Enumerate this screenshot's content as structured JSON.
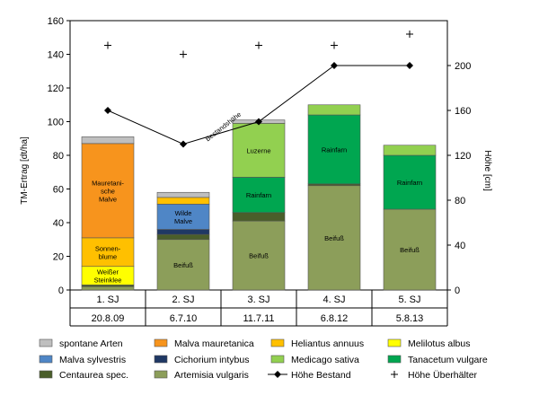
{
  "chart_data": {
    "type": "bar",
    "stacked": true,
    "ylabel": "TM-Ertrag [dt/ha]",
    "y2label": "Höhe [cm]",
    "ylim": [
      0,
      160
    ],
    "yticks": [
      0,
      20,
      40,
      60,
      80,
      100,
      120,
      140,
      160
    ],
    "y2lim": [
      0,
      240
    ],
    "y2ticks": [
      0,
      40,
      80,
      120,
      160,
      200
    ],
    "categories": [
      "1. SJ",
      "2. SJ",
      "3. SJ",
      "4. SJ",
      "5. SJ"
    ],
    "dates": [
      "20.8.09",
      "6.7.10",
      "11.7.11",
      "6.8.12",
      "5.8.13"
    ],
    "series": [
      {
        "name": "Artemisia vulgaris",
        "color": "#8c9e5a",
        "values": [
          2,
          30,
          41,
          62,
          48
        ],
        "labels": [
          "",
          "Beifuß",
          "Beifuß",
          "Beifuß",
          "Beifuß"
        ]
      },
      {
        "name": "Centaurea spec.",
        "color": "#4a5e2a",
        "values": [
          1,
          3,
          5,
          1,
          0
        ],
        "labels": [
          "",
          "",
          "",
          "",
          ""
        ]
      },
      {
        "name": "Tanacetum vulgare",
        "color": "#00a650",
        "values": [
          0,
          0,
          21,
          41,
          32
        ],
        "labels": [
          "",
          "",
          "Rainfarn",
          "Rainfarn",
          "Rainfarn"
        ]
      },
      {
        "name": "Medicago sativa",
        "color": "#92d050",
        "values": [
          0,
          0,
          32,
          6,
          6
        ],
        "labels": [
          "",
          "",
          "Luzerne",
          "",
          ""
        ]
      },
      {
        "name": "Cichorium intybus",
        "color": "#1f3864",
        "values": [
          0,
          3,
          0,
          0,
          0
        ],
        "labels": [
          "",
          "",
          "",
          "",
          ""
        ]
      },
      {
        "name": "Malva sylvestris",
        "color": "#4f86c6",
        "values": [
          0,
          15,
          0,
          0,
          0
        ],
        "labels": [
          "",
          "Wilde Malve",
          "",
          "",
          ""
        ]
      },
      {
        "name": "Melilotus albus",
        "color": "#ffff00",
        "values": [
          11,
          0,
          0,
          0,
          0
        ],
        "labels": [
          "Weißer Steinklee",
          "",
          "",
          "",
          ""
        ]
      },
      {
        "name": "Heliantus annuus",
        "color": "#ffc000",
        "values": [
          17,
          4,
          0,
          0,
          0
        ],
        "labels": [
          "Sonnen- blume",
          "",
          "",
          "",
          ""
        ]
      },
      {
        "name": "Malva mauretanica",
        "color": "#f7941d",
        "values": [
          56,
          0,
          0,
          0,
          0
        ],
        "labels": [
          "Mauretani- sche Malve",
          "",
          "",
          "",
          ""
        ]
      },
      {
        "name": "spontane Arten",
        "color": "#bfbfbf",
        "values": [
          4,
          3,
          2,
          0,
          0
        ],
        "labels": [
          "",
          "",
          "",
          "",
          ""
        ]
      }
    ],
    "lines": [
      {
        "name": "Höhe Bestand",
        "axis": "y2",
        "values": [
          160,
          130,
          150,
          200,
          200
        ],
        "annotation": "Bestandshöhe"
      },
      {
        "name": "Höhe Überhälter",
        "axis": "y2",
        "marker": "plus",
        "values": [
          218,
          210,
          218,
          218,
          228
        ]
      }
    ],
    "legend": [
      {
        "name": "spontane Arten",
        "type": "box",
        "color": "#bfbfbf"
      },
      {
        "name": "Malva mauretanica",
        "type": "box",
        "color": "#f7941d"
      },
      {
        "name": "Heliantus annuus",
        "type": "box",
        "color": "#ffc000"
      },
      {
        "name": "Melilotus albus",
        "type": "box",
        "color": "#ffff00"
      },
      {
        "name": "Malva sylvestris",
        "type": "box",
        "color": "#4f86c6"
      },
      {
        "name": "Cichorium intybus",
        "type": "box",
        "color": "#1f3864"
      },
      {
        "name": "Medicago sativa",
        "type": "box",
        "color": "#92d050"
      },
      {
        "name": "Tanacetum vulgare",
        "type": "box",
        "color": "#00a650"
      },
      {
        "name": "Centaurea spec.",
        "type": "box",
        "color": "#4a5e2a"
      },
      {
        "name": "Artemisia vulgaris",
        "type": "box",
        "color": "#8c9e5a"
      },
      {
        "name": "Höhe Bestand",
        "type": "line"
      },
      {
        "name": "Höhe Überhälter",
        "type": "plus"
      }
    ],
    "legend_position": "bottom",
    "grid": false
  }
}
